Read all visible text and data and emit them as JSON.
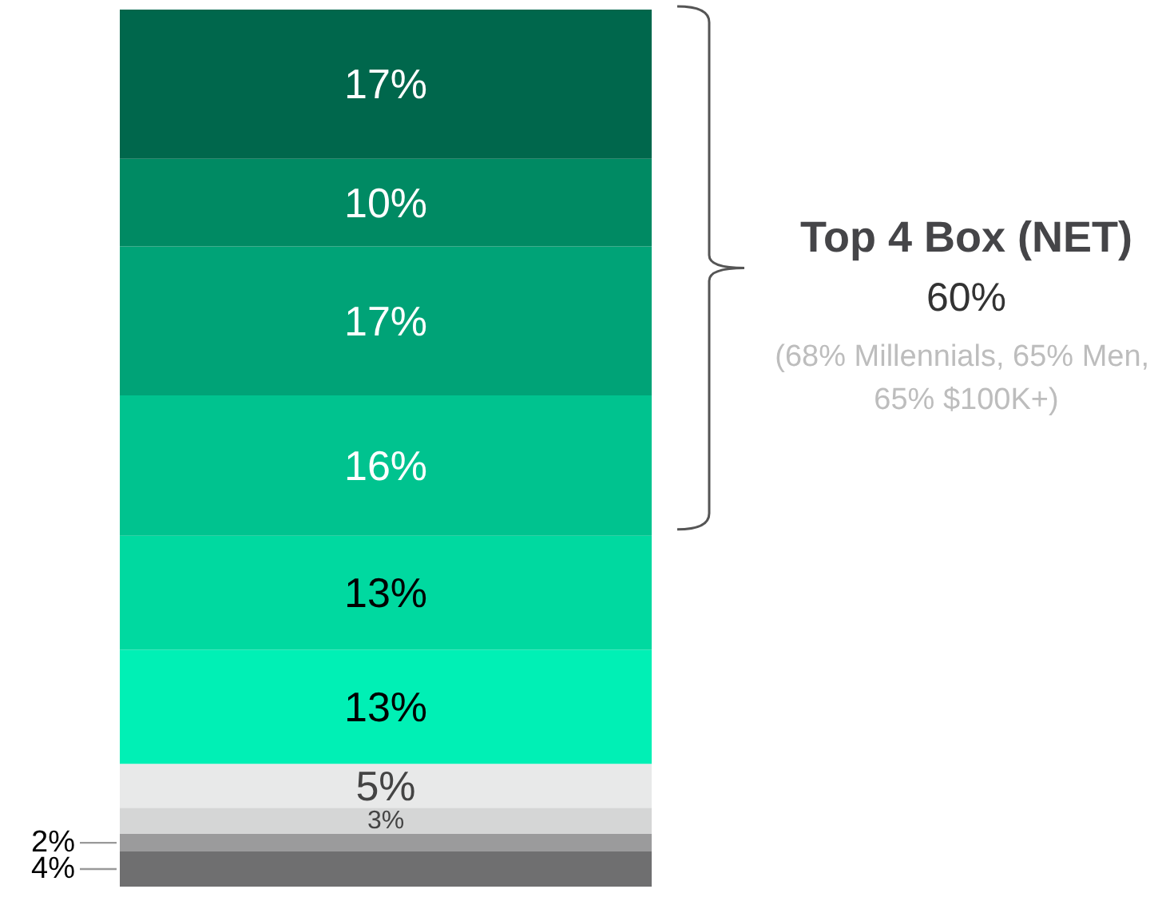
{
  "chart_data": {
    "type": "bar",
    "stacked": true,
    "categories": [
      null
    ],
    "series": [
      {
        "color": "#6f6f70",
        "values": [
          4
        ],
        "value_labels": [
          "4%"
        ]
      },
      {
        "color": "#9b9b9c",
        "values": [
          2
        ],
        "value_labels": [
          "2%"
        ]
      },
      {
        "color": "#d5d6d6",
        "values": [
          3
        ],
        "value_labels": [
          "3%"
        ]
      },
      {
        "color": "#e8e9e9",
        "values": [
          5
        ],
        "value_labels": [
          "5%"
        ]
      },
      {
        "color": "#00f0b5",
        "values": [
          13
        ],
        "value_labels": [
          "13%"
        ]
      },
      {
        "color": "#00d9a0",
        "values": [
          13
        ],
        "value_labels": [
          "13%"
        ]
      },
      {
        "color": "#00c38f",
        "values": [
          16
        ],
        "value_labels": [
          "16%"
        ]
      },
      {
        "color": "#00a377",
        "values": [
          17
        ],
        "value_labels": [
          "17%"
        ]
      },
      {
        "color": "#008a63",
        "values": [
          10
        ],
        "value_labels": [
          "10%"
        ]
      },
      {
        "color": "#00674c",
        "values": [
          17
        ],
        "value_labels": [
          "17%"
        ]
      }
    ],
    "annotations": [
      "Top 4 Box (NET)",
      "60%",
      "(68% Millennials, 65% Men, 65% $100K+)"
    ]
  }
}
